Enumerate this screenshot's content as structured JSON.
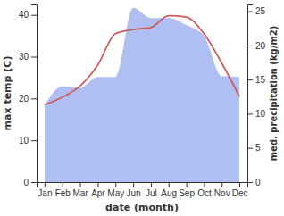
{
  "chart_data": {
    "type": "line",
    "x_label": "date (month)",
    "y_label": "max temp (C)",
    "y2_label": "med. precipitation (kg/m2)",
    "categories": [
      "Jan",
      "Feb",
      "Mar",
      "Apr",
      "May",
      "Jun",
      "Jul",
      "Aug",
      "Sep",
      "Oct",
      "Nov",
      "Dec"
    ],
    "series": [
      {
        "type": "area",
        "axis": "y2",
        "color": "#b0bff2",
        "values": [
          11.2,
          14,
          13.8,
          15.4,
          15.4,
          25.5,
          24,
          24,
          23,
          21.4,
          15.5,
          15.4
        ]
      },
      {
        "type": "line",
        "color": "#cd5c5c",
        "values": [
          18.5,
          20.3,
          23,
          28,
          35.5,
          36.5,
          37,
          39.8,
          39.5,
          35.5,
          28.5,
          20.5
        ]
      }
    ],
    "ylim": [
      0,
      42.5
    ],
    "yticks": [
      0,
      10,
      20,
      30,
      40
    ],
    "y2lim": [
      0,
      26
    ],
    "y2ticks": [
      0,
      5,
      10,
      15,
      20,
      25
    ],
    "grid": false
  }
}
